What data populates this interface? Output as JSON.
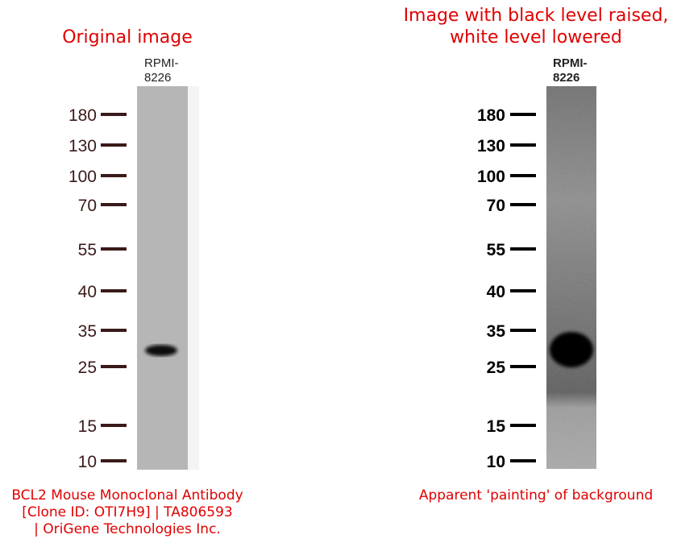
{
  "panels": [
    {
      "title": [
        "Original image"
      ],
      "lane_label": [
        "RPMI-",
        "8226"
      ],
      "markers": [
        "180",
        "130",
        "100",
        "70",
        "55",
        "40",
        "35",
        "25",
        "15",
        "10"
      ],
      "caption": [
        "BCL2 Mouse Monoclonal Antibody",
        "[Clone ID: OTI7H9] | TA806593",
        "| OriGene Technologies Inc."
      ]
    },
    {
      "title": [
        "Image with black level raised,",
        "white level lowered"
      ],
      "lane_label": [
        "RPMI-",
        "8226"
      ],
      "markers": [
        "180",
        "130",
        "100",
        "70",
        "55",
        "40",
        "35",
        "25",
        "15",
        "10"
      ],
      "caption": [
        "Apparent 'painting' of background"
      ]
    }
  ]
}
